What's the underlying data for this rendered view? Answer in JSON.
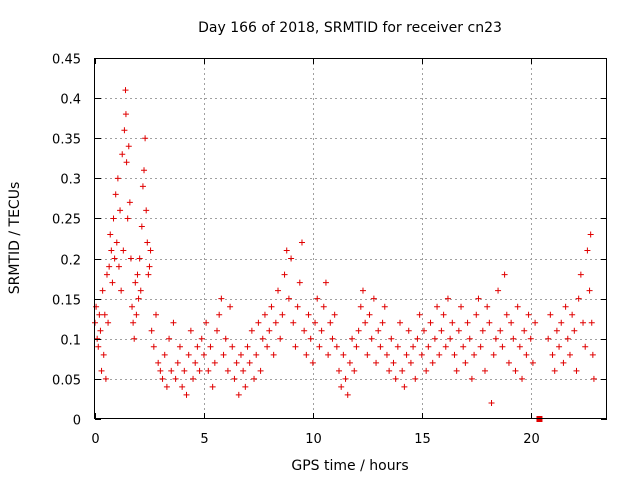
{
  "chart_data": {
    "type": "scatter",
    "title": "Day 166 of 2018, SRMTID for receiver cn23",
    "xlabel": "GPS time / hours",
    "ylabel": "SRMTID / TECUs",
    "xlim": [
      0,
      23.5
    ],
    "ylim": [
      0,
      0.45
    ],
    "xticks": [
      0,
      5,
      10,
      15,
      20
    ],
    "xtick_labels": [
      "0",
      "5",
      "10",
      "15",
      "20"
    ],
    "yticks": [
      0,
      0.05,
      0.1,
      0.15,
      0.2,
      0.25,
      0.3,
      0.35,
      0.4,
      0.45
    ],
    "ytick_labels": [
      "0",
      "0.05",
      "0.1",
      "0.15",
      "0.2",
      "0.25",
      "0.3",
      "0.35",
      "0.4",
      "0.45"
    ],
    "grid": true,
    "marker": "plus",
    "color": "#e00000",
    "series": [
      {
        "name": "SRMTID",
        "points": [
          [
            0.0,
            0.12
          ],
          [
            0.05,
            0.14
          ],
          [
            0.1,
            0.1
          ],
          [
            0.15,
            0.09
          ],
          [
            0.2,
            0.13
          ],
          [
            0.25,
            0.11
          ],
          [
            0.3,
            0.06
          ],
          [
            0.35,
            0.16
          ],
          [
            0.4,
            0.08
          ],
          [
            0.45,
            0.13
          ],
          [
            0.5,
            0.05
          ],
          [
            0.55,
            0.18
          ],
          [
            0.6,
            0.12
          ],
          [
            0.65,
            0.19
          ],
          [
            0.7,
            0.23
          ],
          [
            0.75,
            0.21
          ],
          [
            0.8,
            0.17
          ],
          [
            0.85,
            0.25
          ],
          [
            0.9,
            0.2
          ],
          [
            0.95,
            0.28
          ],
          [
            1.0,
            0.22
          ],
          [
            1.05,
            0.3
          ],
          [
            1.1,
            0.19
          ],
          [
            1.15,
            0.26
          ],
          [
            1.2,
            0.16
          ],
          [
            1.25,
            0.33
          ],
          [
            1.3,
            0.21
          ],
          [
            1.35,
            0.36
          ],
          [
            1.4,
            0.41
          ],
          [
            1.42,
            0.38
          ],
          [
            1.45,
            0.32
          ],
          [
            1.5,
            0.25
          ],
          [
            1.55,
            0.34
          ],
          [
            1.6,
            0.27
          ],
          [
            1.65,
            0.2
          ],
          [
            1.7,
            0.14
          ],
          [
            1.75,
            0.12
          ],
          [
            1.8,
            0.1
          ],
          [
            1.85,
            0.17
          ],
          [
            1.9,
            0.13
          ],
          [
            1.95,
            0.18
          ],
          [
            2.0,
            0.15
          ],
          [
            2.05,
            0.2
          ],
          [
            2.1,
            0.16
          ],
          [
            2.15,
            0.24
          ],
          [
            2.2,
            0.29
          ],
          [
            2.25,
            0.31
          ],
          [
            2.3,
            0.35
          ],
          [
            2.35,
            0.26
          ],
          [
            2.4,
            0.22
          ],
          [
            2.45,
            0.18
          ],
          [
            2.5,
            0.19
          ],
          [
            2.55,
            0.21
          ],
          [
            2.6,
            0.11
          ],
          [
            2.7,
            0.09
          ],
          [
            2.8,
            0.13
          ],
          [
            2.9,
            0.07
          ],
          [
            3.0,
            0.06
          ],
          [
            3.1,
            0.05
          ],
          [
            3.2,
            0.08
          ],
          [
            3.3,
            0.04
          ],
          [
            3.4,
            0.1
          ],
          [
            3.5,
            0.06
          ],
          [
            3.6,
            0.12
          ],
          [
            3.7,
            0.05
          ],
          [
            3.8,
            0.07
          ],
          [
            3.9,
            0.09
          ],
          [
            4.0,
            0.04
          ],
          [
            4.1,
            0.06
          ],
          [
            4.2,
            0.03
          ],
          [
            4.3,
            0.08
          ],
          [
            4.4,
            0.11
          ],
          [
            4.5,
            0.05
          ],
          [
            4.6,
            0.07
          ],
          [
            4.7,
            0.09
          ],
          [
            4.8,
            0.06
          ],
          [
            4.9,
            0.1
          ],
          [
            5.0,
            0.08
          ],
          [
            5.1,
            0.12
          ],
          [
            5.2,
            0.06
          ],
          [
            5.3,
            0.09
          ],
          [
            5.4,
            0.04
          ],
          [
            5.5,
            0.07
          ],
          [
            5.6,
            0.11
          ],
          [
            5.7,
            0.13
          ],
          [
            5.8,
            0.15
          ],
          [
            5.9,
            0.08
          ],
          [
            6.0,
            0.1
          ],
          [
            6.1,
            0.06
          ],
          [
            6.2,
            0.14
          ],
          [
            6.3,
            0.09
          ],
          [
            6.4,
            0.05
          ],
          [
            6.5,
            0.07
          ],
          [
            6.6,
            0.03
          ],
          [
            6.7,
            0.08
          ],
          [
            6.8,
            0.06
          ],
          [
            6.9,
            0.04
          ],
          [
            7.0,
            0.09
          ],
          [
            7.1,
            0.07
          ],
          [
            7.2,
            0.11
          ],
          [
            7.3,
            0.05
          ],
          [
            7.4,
            0.08
          ],
          [
            7.5,
            0.12
          ],
          [
            7.6,
            0.06
          ],
          [
            7.7,
            0.1
          ],
          [
            7.8,
            0.13
          ],
          [
            7.9,
            0.09
          ],
          [
            8.0,
            0.11
          ],
          [
            8.1,
            0.14
          ],
          [
            8.2,
            0.08
          ],
          [
            8.3,
            0.12
          ],
          [
            8.4,
            0.16
          ],
          [
            8.5,
            0.1
          ],
          [
            8.6,
            0.13
          ],
          [
            8.7,
            0.18
          ],
          [
            8.8,
            0.21
          ],
          [
            8.9,
            0.15
          ],
          [
            9.0,
            0.2
          ],
          [
            9.1,
            0.12
          ],
          [
            9.2,
            0.09
          ],
          [
            9.3,
            0.14
          ],
          [
            9.4,
            0.17
          ],
          [
            9.5,
            0.22
          ],
          [
            9.6,
            0.11
          ],
          [
            9.7,
            0.08
          ],
          [
            9.8,
            0.13
          ],
          [
            9.9,
            0.1
          ],
          [
            10.0,
            0.07
          ],
          [
            10.1,
            0.12
          ],
          [
            10.2,
            0.15
          ],
          [
            10.3,
            0.09
          ],
          [
            10.4,
            0.11
          ],
          [
            10.5,
            0.14
          ],
          [
            10.6,
            0.17
          ],
          [
            10.7,
            0.08
          ],
          [
            10.8,
            0.12
          ],
          [
            10.9,
            0.1
          ],
          [
            11.0,
            0.13
          ],
          [
            11.1,
            0.09
          ],
          [
            11.2,
            0.06
          ],
          [
            11.3,
            0.04
          ],
          [
            11.4,
            0.08
          ],
          [
            11.5,
            0.05
          ],
          [
            11.6,
            0.03
          ],
          [
            11.7,
            0.07
          ],
          [
            11.8,
            0.1
          ],
          [
            11.9,
            0.06
          ],
          [
            12.0,
            0.09
          ],
          [
            12.1,
            0.11
          ],
          [
            12.2,
            0.14
          ],
          [
            12.3,
            0.16
          ],
          [
            12.4,
            0.12
          ],
          [
            12.5,
            0.08
          ],
          [
            12.6,
            0.13
          ],
          [
            12.7,
            0.1
          ],
          [
            12.8,
            0.15
          ],
          [
            12.9,
            0.07
          ],
          [
            13.0,
            0.11
          ],
          [
            13.1,
            0.09
          ],
          [
            13.2,
            0.12
          ],
          [
            13.3,
            0.14
          ],
          [
            13.4,
            0.08
          ],
          [
            13.5,
            0.06
          ],
          [
            13.6,
            0.1
          ],
          [
            13.7,
            0.07
          ],
          [
            13.8,
            0.05
          ],
          [
            13.9,
            0.09
          ],
          [
            14.0,
            0.12
          ],
          [
            14.1,
            0.06
          ],
          [
            14.2,
            0.04
          ],
          [
            14.3,
            0.08
          ],
          [
            14.4,
            0.11
          ],
          [
            14.5,
            0.07
          ],
          [
            14.6,
            0.09
          ],
          [
            14.7,
            0.05
          ],
          [
            14.8,
            0.1
          ],
          [
            14.9,
            0.13
          ],
          [
            15.0,
            0.08
          ],
          [
            15.1,
            0.11
          ],
          [
            15.2,
            0.06
          ],
          [
            15.3,
            0.09
          ],
          [
            15.4,
            0.12
          ],
          [
            15.5,
            0.07
          ],
          [
            15.6,
            0.1
          ],
          [
            15.7,
            0.14
          ],
          [
            15.8,
            0.08
          ],
          [
            15.9,
            0.11
          ],
          [
            16.0,
            0.13
          ],
          [
            16.1,
            0.09
          ],
          [
            16.2,
            0.15
          ],
          [
            16.3,
            0.1
          ],
          [
            16.4,
            0.12
          ],
          [
            16.5,
            0.08
          ],
          [
            16.6,
            0.06
          ],
          [
            16.7,
            0.11
          ],
          [
            16.8,
            0.14
          ],
          [
            16.9,
            0.09
          ],
          [
            17.0,
            0.07
          ],
          [
            17.1,
            0.12
          ],
          [
            17.2,
            0.1
          ],
          [
            17.3,
            0.05
          ],
          [
            17.4,
            0.08
          ],
          [
            17.5,
            0.13
          ],
          [
            17.6,
            0.15
          ],
          [
            17.7,
            0.09
          ],
          [
            17.8,
            0.11
          ],
          [
            17.9,
            0.06
          ],
          [
            18.0,
            0.14
          ],
          [
            18.1,
            0.12
          ],
          [
            18.2,
            0.02
          ],
          [
            18.3,
            0.08
          ],
          [
            18.4,
            0.1
          ],
          [
            18.5,
            0.16
          ],
          [
            18.6,
            0.11
          ],
          [
            18.7,
            0.09
          ],
          [
            18.8,
            0.18
          ],
          [
            18.9,
            0.13
          ],
          [
            19.0,
            0.07
          ],
          [
            19.1,
            0.12
          ],
          [
            19.2,
            0.1
          ],
          [
            19.3,
            0.06
          ],
          [
            19.4,
            0.14
          ],
          [
            19.5,
            0.09
          ],
          [
            19.6,
            0.05
          ],
          [
            19.7,
            0.11
          ],
          [
            19.8,
            0.08
          ],
          [
            19.9,
            0.13
          ],
          [
            20.0,
            0.1
          ],
          [
            20.1,
            0.07
          ],
          [
            20.2,
            0.12
          ],
          [
            20.8,
            0.1
          ],
          [
            20.9,
            0.13
          ],
          [
            21.0,
            0.08
          ],
          [
            21.1,
            0.06
          ],
          [
            21.2,
            0.11
          ],
          [
            21.3,
            0.09
          ],
          [
            21.4,
            0.12
          ],
          [
            21.5,
            0.07
          ],
          [
            21.6,
            0.14
          ],
          [
            21.7,
            0.1
          ],
          [
            21.8,
            0.08
          ],
          [
            21.9,
            0.13
          ],
          [
            22.0,
            0.11
          ],
          [
            22.1,
            0.06
          ],
          [
            22.2,
            0.15
          ],
          [
            22.3,
            0.18
          ],
          [
            22.4,
            0.12
          ],
          [
            22.5,
            0.09
          ],
          [
            22.6,
            0.21
          ],
          [
            22.7,
            0.16
          ],
          [
            22.75,
            0.23
          ],
          [
            22.8,
            0.12
          ],
          [
            22.85,
            0.08
          ],
          [
            22.9,
            0.05
          ]
        ],
        "special_marker": {
          "x": 20.4,
          "y": 0.0,
          "shape": "square"
        }
      }
    ]
  }
}
